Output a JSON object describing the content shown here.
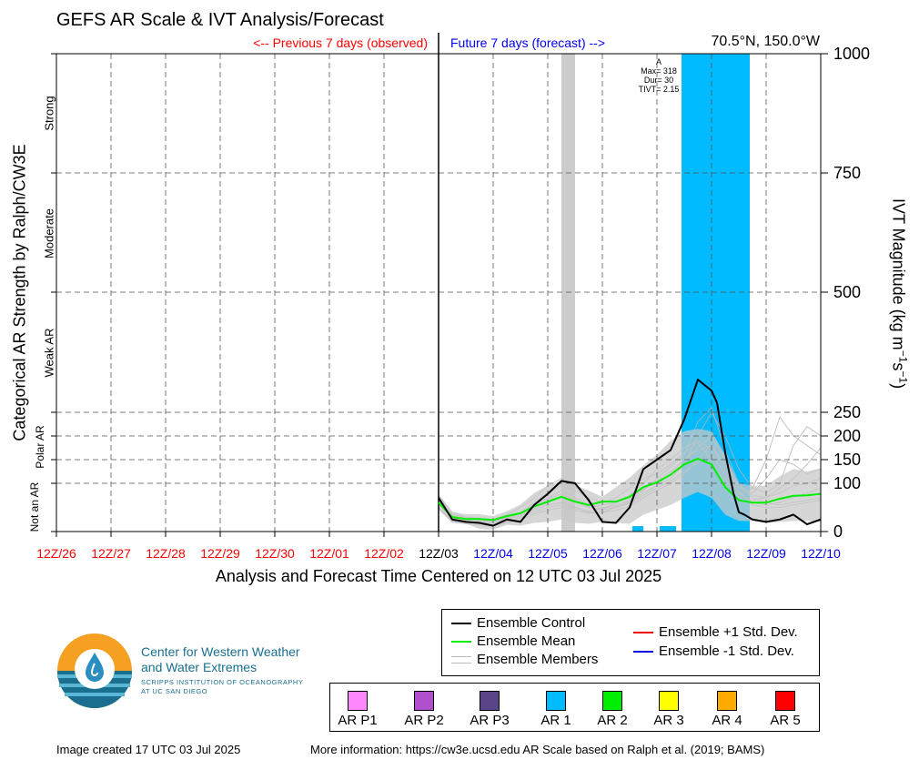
{
  "title": "GEFS AR Scale & IVT Analysis/Forecast",
  "location": "70.5°N, 150.0°W",
  "previous_label": "<-- Previous 7 days (observed)",
  "future_label": "Future 7 days (forecast) -->",
  "colors": {
    "observed": "#ff0000",
    "forecast": "#0000ee",
    "control": "#000000",
    "mean": "#00ee00",
    "members": "#b4b4b4",
    "plus_std": "#ee0000",
    "minus_std": "#0000dd",
    "ar1": "#00bbff",
    "gray_band": "#cccccc"
  },
  "left_axis": {
    "title": "Categorical AR Strength by Ralph/CW3E",
    "categories": [
      "Strong",
      "Moderate",
      "Weak AR",
      "Polar AR",
      "Not an AR"
    ]
  },
  "right_axis": {
    "title_main": "IVT Magnitude (kg m",
    "title_sup1": "−1",
    "title_mid": "s",
    "title_sup2": "−1",
    "title_end": ")",
    "ticks": [
      "0",
      "100",
      "150",
      "200",
      "250",
      "500",
      "750",
      "1000"
    ]
  },
  "xlabel": "Analysis and Forecast Time Centered on 12 UTC 03 Jul 2025",
  "event_annotation": {
    "letter": "A",
    "max": "Max= 318",
    "dur": "Dur= 30",
    "tivt": "TIVT= 2.15"
  },
  "legend": {
    "control": "Ensemble Control",
    "mean": "Ensemble Mean",
    "members": "Ensemble Members",
    "plus": "Ensemble +1 Std. Dev.",
    "minus": "Ensemble -1 Std. Dev."
  },
  "ar_categories": [
    {
      "label": "AR P1",
      "color": "#ff88ff"
    },
    {
      "label": "AR P2",
      "color": "#b050cc"
    },
    {
      "label": "AR P3",
      "color": "#5a4488"
    },
    {
      "label": "AR 1",
      "color": "#00bbff"
    },
    {
      "label": "AR 2",
      "color": "#00ee00"
    },
    {
      "label": "AR 3",
      "color": "#ffff00"
    },
    {
      "label": "AR 4",
      "color": "#ffaa00"
    },
    {
      "label": "AR 5",
      "color": "#ff0000"
    }
  ],
  "logo": {
    "line1": "Center for Western Weather",
    "line2": "and Water Extremes",
    "line3": "SCRIPPS INSTITUTION OF OCEANOGRAPHY",
    "line4": "AT UC SAN DIEGO"
  },
  "footer_left": "Image created 17 UTC 03 Jul 2025",
  "footer_right": "More information: https://cw3e.ucsd.edu AR Scale based on Ralph et al. (2019; BAMS)",
  "chart_data": {
    "type": "line",
    "x_tick_labels": [
      "12Z/26",
      "12Z/27",
      "12Z/28",
      "12Z/29",
      "12Z/30",
      "12Z/01",
      "12Z/02",
      "12Z/03",
      "12Z/04",
      "12Z/05",
      "12Z/06",
      "12Z/07",
      "12Z/08",
      "12Z/09",
      "12Z/10"
    ],
    "x_tick_colors": [
      "#ff0000",
      "#ff0000",
      "#ff0000",
      "#ff0000",
      "#ff0000",
      "#ff0000",
      "#ff0000",
      "#000000",
      "#0000ee",
      "#0000ee",
      "#0000ee",
      "#0000ee",
      "#0000ee",
      "#0000ee",
      "#0000ee"
    ],
    "x_range_days": [
      -7,
      7
    ],
    "y_ticks_ivt": [
      0,
      100,
      150,
      200,
      250,
      500,
      750,
      1000
    ],
    "ylim": [
      0,
      1000
    ],
    "gray_band_days": [
      2.25,
      2.5
    ],
    "ar1_band_days": [
      4.45,
      5.7
    ],
    "series": [
      {
        "name": "Ensemble Control",
        "key": "control",
        "x": [
          0,
          0.25,
          0.5,
          0.75,
          1,
          1.25,
          1.5,
          1.75,
          2,
          2.25,
          2.5,
          2.75,
          3,
          3.25,
          3.5,
          3.75,
          4,
          4.25,
          4.5,
          4.75,
          5,
          5.1,
          5.25,
          5.4,
          5.5,
          5.6,
          5.75,
          6,
          6.25,
          6.5,
          6.75,
          7
        ],
        "y": [
          70,
          25,
          20,
          18,
          12,
          25,
          20,
          55,
          78,
          105,
          100,
          65,
          20,
          18,
          50,
          130,
          150,
          170,
          235,
          318,
          295,
          270,
          165,
          80,
          40,
          35,
          25,
          20,
          25,
          35,
          15,
          25
        ]
      },
      {
        "name": "Ensemble Mean",
        "key": "mean",
        "x": [
          0,
          0.25,
          0.5,
          0.75,
          1,
          1.25,
          1.5,
          1.75,
          2,
          2.25,
          2.5,
          2.75,
          3,
          3.25,
          3.5,
          3.75,
          4,
          4.25,
          4.5,
          4.75,
          5,
          5.25,
          5.5,
          5.75,
          6,
          6.25,
          6.5,
          6.75,
          7
        ],
        "y": [
          60,
          30,
          26,
          26,
          24,
          32,
          38,
          52,
          62,
          72,
          62,
          55,
          62,
          62,
          72,
          92,
          102,
          118,
          140,
          152,
          140,
          92,
          65,
          60,
          60,
          68,
          74,
          75,
          78
        ]
      },
      {
        "name": "Ensemble +1 Std. Dev.",
        "key": "plus",
        "x": [
          0,
          0.25,
          0.5,
          0.75,
          1,
          1.25,
          1.5,
          1.75,
          2,
          2.25,
          2.5,
          2.75,
          3,
          3.25,
          3.5,
          3.75,
          4,
          4.25,
          4.5,
          4.75,
          5,
          5.25,
          5.5,
          5.75,
          6,
          6.25,
          6.5,
          6.75,
          7
        ],
        "y": [
          75,
          40,
          36,
          36,
          32,
          42,
          56,
          80,
          95,
          105,
          96,
          85,
          72,
          92,
          112,
          138,
          160,
          190,
          210,
          215,
          210,
          160,
          100,
          95,
          95,
          115,
          130,
          125,
          132
        ]
      },
      {
        "name": "Ensemble -1 Std. Dev.",
        "key": "minus",
        "x": [
          0,
          0.25,
          0.5,
          0.75,
          1,
          1.25,
          1.5,
          1.75,
          2,
          2.25,
          2.5,
          2.75,
          3,
          3.25,
          3.5,
          3.75,
          4,
          4.25,
          4.5,
          4.75,
          5,
          5.25,
          5.5,
          5.75,
          6,
          6.25,
          6.5,
          6.75,
          7
        ],
        "y": [
          45,
          18,
          16,
          6,
          4,
          14,
          12,
          18,
          20,
          25,
          18,
          16,
          20,
          18,
          16,
          35,
          45,
          55,
          70,
          82,
          70,
          35,
          22,
          22,
          18,
          20,
          22,
          22,
          20
        ]
      }
    ],
    "members": [
      [
        75,
        40,
        30,
        28,
        25,
        35,
        50,
        70,
        95,
        110,
        95,
        60,
        45,
        60,
        75,
        100,
        130,
        150,
        175,
        190,
        170,
        110,
        70,
        65,
        70,
        80,
        95,
        100,
        110
      ],
      [
        55,
        28,
        22,
        18,
        15,
        20,
        30,
        45,
        55,
        60,
        50,
        40,
        40,
        50,
        60,
        80,
        95,
        110,
        140,
        200,
        250,
        200,
        130,
        90,
        80,
        100,
        180,
        220,
        200
      ],
      [
        65,
        30,
        24,
        22,
        20,
        28,
        35,
        55,
        70,
        85,
        70,
        55,
        50,
        55,
        65,
        90,
        100,
        120,
        150,
        170,
        180,
        140,
        90,
        80,
        110,
        150,
        140,
        120,
        130
      ],
      [
        50,
        22,
        18,
        16,
        14,
        22,
        28,
        40,
        50,
        55,
        48,
        42,
        48,
        52,
        62,
        85,
        110,
        135,
        160,
        230,
        260,
        170,
        100,
        70,
        60,
        55,
        60,
        65,
        70
      ],
      [
        70,
        35,
        30,
        26,
        22,
        30,
        40,
        60,
        80,
        95,
        85,
        70,
        60,
        70,
        90,
        110,
        120,
        140,
        165,
        185,
        150,
        100,
        75,
        90,
        150,
        240,
        200,
        180,
        160
      ],
      [
        60,
        25,
        20,
        20,
        18,
        26,
        32,
        48,
        60,
        70,
        62,
        50,
        45,
        50,
        58,
        75,
        90,
        105,
        125,
        145,
        160,
        120,
        80,
        60,
        55,
        60,
        70,
        80,
        90
      ],
      [
        58,
        32,
        28,
        24,
        20,
        28,
        38,
        56,
        68,
        78,
        66,
        52,
        55,
        60,
        70,
        88,
        105,
        125,
        150,
        175,
        200,
        150,
        95,
        75,
        70,
        90,
        110,
        140,
        175
      ],
      [
        48,
        20,
        16,
        14,
        12,
        18,
        24,
        36,
        44,
        50,
        44,
        38,
        40,
        44,
        52,
        70,
        85,
        100,
        120,
        150,
        180,
        130,
        85,
        55,
        50,
        50,
        55,
        60,
        65
      ]
    ]
  }
}
